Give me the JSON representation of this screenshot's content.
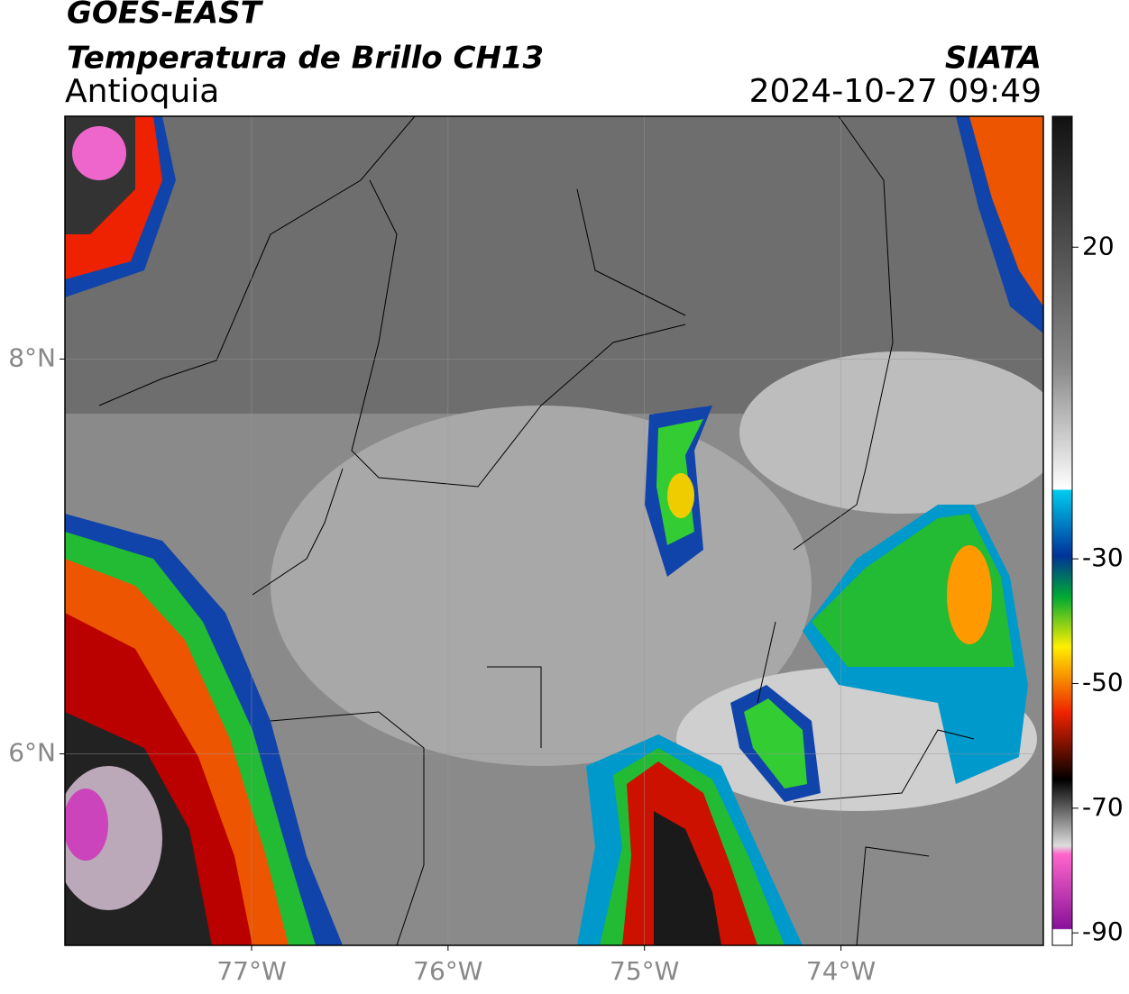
{
  "chart_data": {
    "type": "map",
    "title": "GOES-EAST",
    "subtitle": "Temperatura de Brillo CH13",
    "region": "Antioquia",
    "source": "SIATA",
    "timestamp": "2024-10-27 09:49",
    "xlim": [
      -77.95,
      -72.97
    ],
    "xticks": [
      {
        "value": -77,
        "label": "77°W"
      },
      {
        "value": -76,
        "label": "76°W"
      },
      {
        "value": -75,
        "label": "75°W"
      },
      {
        "value": -74,
        "label": "74°W"
      }
    ],
    "ylim": [
      5.03,
      9.23
    ],
    "yticks": [
      {
        "value": 6,
        "label": "6°N"
      },
      {
        "value": 8,
        "label": "8°N"
      }
    ],
    "grid": true,
    "colorbar": {
      "clim": [
        -92,
        41
      ],
      "ticks": [
        20,
        -30,
        -50,
        -70,
        -90
      ]
    }
  }
}
